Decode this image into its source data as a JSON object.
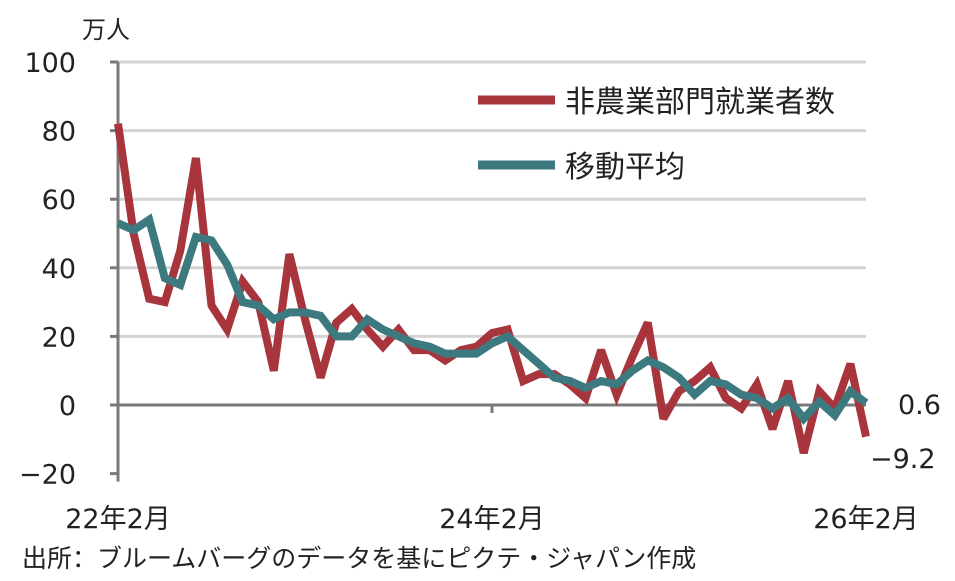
{
  "chart_data": {
    "type": "line",
    "unit_label": "万人",
    "ylim": [
      -20,
      100
    ],
    "yticks": [
      "100",
      "80",
      "60",
      "40",
      "20",
      "0",
      "−20"
    ],
    "ytick_values": [
      100,
      80,
      60,
      40,
      20,
      0,
      -20
    ],
    "xtick_labels": [
      "22年2月",
      "24年2月",
      "26年2月"
    ],
    "xtick_index": [
      0,
      24,
      48
    ],
    "grid": true,
    "legend_position": "top-right",
    "series": [
      {
        "name": "非農業部門就業者数",
        "color": "#a8343c",
        "values": [
          82,
          50,
          31,
          30,
          45,
          72,
          29,
          22,
          36,
          30,
          10,
          44,
          25,
          8,
          24,
          28,
          22,
          17,
          22,
          16,
          16,
          13,
          16,
          17,
          21,
          22,
          7,
          9,
          9,
          6,
          2,
          16,
          3,
          14,
          24,
          -4,
          4,
          7,
          11,
          2,
          -1,
          6,
          -7,
          7,
          -14,
          4,
          -1,
          12,
          -9.2
        ]
      },
      {
        "name": "移動平均",
        "color": "#3d7a80",
        "values": [
          53,
          51,
          54,
          37,
          35,
          49,
          48,
          41,
          30,
          29,
          25,
          27,
          27,
          26,
          20,
          20,
          25,
          22,
          20,
          18,
          17,
          15,
          15,
          15,
          18,
          20,
          16,
          12,
          8,
          7,
          5,
          7,
          6,
          10,
          13,
          11,
          8,
          3,
          7,
          6,
          3,
          2,
          -1,
          2,
          -4,
          1,
          -3,
          4,
          0.6
        ]
      }
    ],
    "end_labels": {
      "moving_average": "0.6",
      "payrolls": "−9.2"
    },
    "source": "出所：ブルームバーグのデータを基にピクテ・ジャパン作成"
  }
}
